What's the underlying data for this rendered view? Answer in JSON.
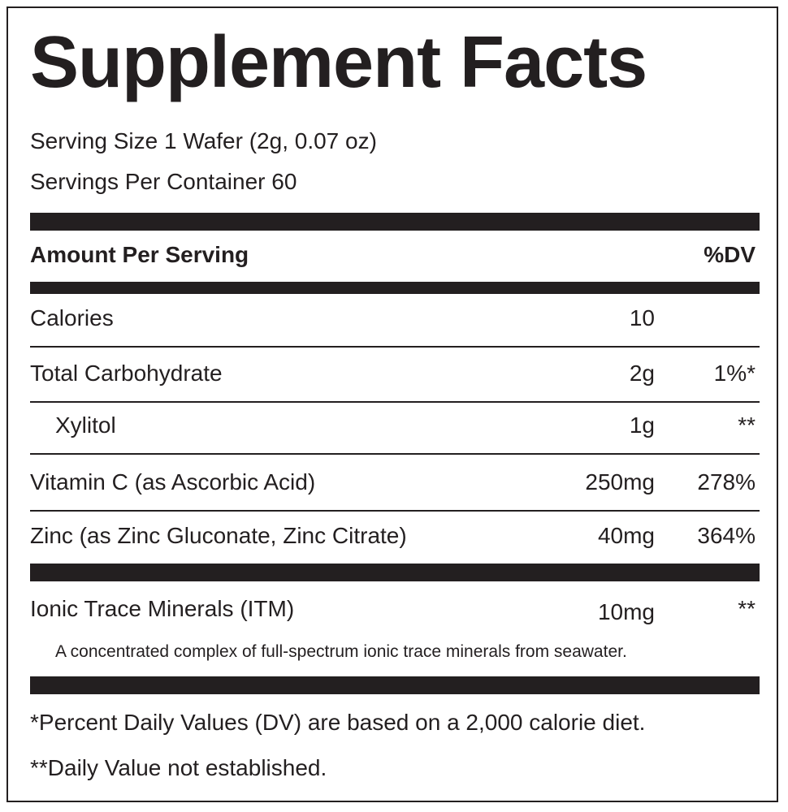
{
  "title": "Supplement Facts",
  "serving_size": "Serving Size 1 Wafer (2g, 0.07 oz)",
  "servings_per_container": "Servings Per Container 60",
  "header": {
    "amount": "Amount Per Serving",
    "dv": "%DV"
  },
  "rows": [
    {
      "name": "Calories",
      "amount": "10"
    },
    {
      "name": "Total Carbohydrate",
      "amount": "2g",
      "dv": "1%*"
    },
    {
      "name": "Xylitol",
      "amount": "1g",
      "dv": "**"
    },
    {
      "name": "Vitamin C (as Ascorbic Acid)",
      "amount": "250mg",
      "dv": "278%"
    },
    {
      "name": "Zinc (as Zinc Gluconate, Zinc Citrate)",
      "amount": "40mg",
      "dv": "364%"
    }
  ],
  "ionic": {
    "name": "Ionic Trace Minerals (ITM)",
    "amount": "10mg",
    "dv": "**",
    "note": "A concentrated complex of full-spectrum ionic trace minerals from seawater."
  },
  "footnotes": [
    "*Percent Daily Values (DV) are based on a 2,000 calorie diet.",
    "**Daily Value not established."
  ]
}
